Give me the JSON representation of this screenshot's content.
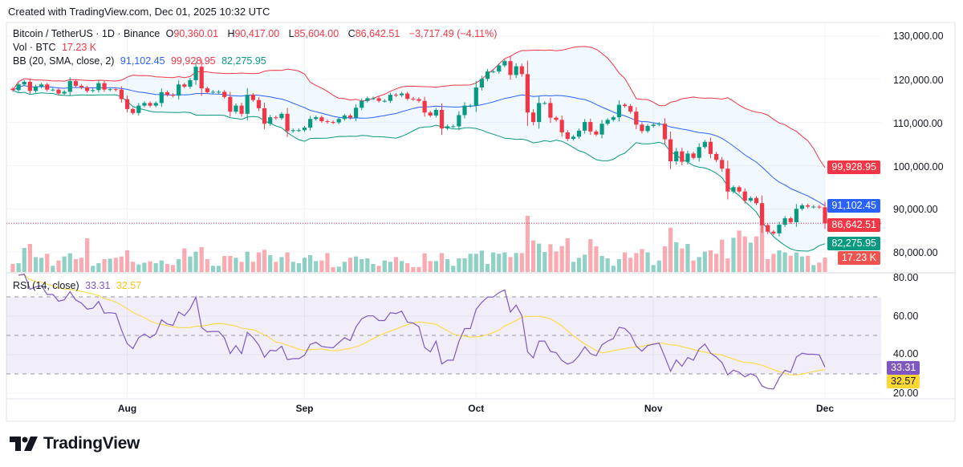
{
  "created": "Created with TradingView.com, Dec 01, 2025 10:32 UTC",
  "legend": {
    "symbol": "Bitcoin / TetherUS · 1D · Binance",
    "o_label": "O",
    "o": "90,360.01",
    "h_label": "H",
    "h": "90,417.00",
    "l_label": "L",
    "l": "85,604.00",
    "c_label": "C",
    "c": "86,642.51",
    "change": "−3,717.49 (−4.11%)",
    "vol_label": "Vol · BTC",
    "vol": "17.23 K",
    "bb_label": "BB (20, SMA, close, 2)",
    "bb_basis": "91,102.45",
    "bb_upper": "99,928.95",
    "bb_lower": "82,275.95",
    "rsi_label": "RSI (14, close)",
    "rsi": "33.31",
    "rsi_ma": "32.57"
  },
  "price_axis": [
    "130,000.00",
    "120,000.00",
    "110,000.00",
    "100,000.00",
    "90,000.00",
    "80,000.00"
  ],
  "rsi_axis": [
    "80.00",
    "60.00",
    "40.00",
    "20.00"
  ],
  "badges": {
    "bb_upper": "99,928.95",
    "bb_basis": "91,102.45",
    "last_price": "86,642.51",
    "bb_lower": "82,275.95",
    "volume": "17.23 K",
    "rsi": "33.31",
    "rsi_ma": "32.57"
  },
  "time_axis": [
    {
      "label": "Aug",
      "date": "Aug 1"
    },
    {
      "label": "Sep",
      "date": "Sep 1"
    },
    {
      "label": "Oct",
      "date": "Oct 1"
    },
    {
      "label": "Nov",
      "date": "Nov 1"
    },
    {
      "label": "Dec",
      "date": "Dec 1"
    }
  ],
  "logo": "TradingView",
  "colors": {
    "up": "#089981",
    "down": "#F23645",
    "bb_basis": "#2962FF",
    "bb_upper": "#F23645",
    "bb_lower": "#089981",
    "rsi": "#7E57C2",
    "rsi_ma": "#FDD835"
  },
  "chart_data": {
    "type": "candlestick",
    "symbol": "Bitcoin / TetherUS",
    "interval": "1D",
    "price_range": [
      78000,
      131000
    ],
    "rsi_range": [
      15,
      80
    ],
    "rsi_levels": [
      70,
      50,
      30
    ],
    "dates": [
      "Jul 12",
      "Jul 13",
      "Jul 14",
      "Jul 15",
      "Jul 16",
      "Jul 17",
      "Jul 18",
      "Jul 19",
      "Jul 20",
      "Jul 21",
      "Jul 22",
      "Jul 23",
      "Jul 24",
      "Jul 25",
      "Jul 26",
      "Jul 27",
      "Jul 28",
      "Jul 29",
      "Jul 30",
      "Jul 31",
      "Aug 1",
      "Aug 2",
      "Aug 3",
      "Aug 4",
      "Aug 5",
      "Aug 6",
      "Aug 7",
      "Aug 8",
      "Aug 9",
      "Aug 10",
      "Aug 11",
      "Aug 12",
      "Aug 13",
      "Aug 14",
      "Aug 15",
      "Aug 16",
      "Aug 17",
      "Aug 18",
      "Aug 19",
      "Aug 20",
      "Aug 21",
      "Aug 22",
      "Aug 23",
      "Aug 24",
      "Aug 25",
      "Aug 26",
      "Aug 27",
      "Aug 28",
      "Aug 29",
      "Aug 30",
      "Aug 31",
      "Sep 1",
      "Sep 2",
      "Sep 3",
      "Sep 4",
      "Sep 5",
      "Sep 6",
      "Sep 7",
      "Sep 8",
      "Sep 9",
      "Sep 10",
      "Sep 11",
      "Sep 12",
      "Sep 13",
      "Sep 14",
      "Sep 15",
      "Sep 16",
      "Sep 17",
      "Sep 18",
      "Sep 19",
      "Sep 20",
      "Sep 21",
      "Sep 22",
      "Sep 23",
      "Sep 24",
      "Sep 25",
      "Sep 26",
      "Sep 27",
      "Sep 28",
      "Sep 29",
      "Sep 30",
      "Oct 1",
      "Oct 2",
      "Oct 3",
      "Oct 4",
      "Oct 5",
      "Oct 6",
      "Oct 7",
      "Oct 8",
      "Oct 9",
      "Oct 10",
      "Oct 11",
      "Oct 12",
      "Oct 13",
      "Oct 14",
      "Oct 15",
      "Oct 16",
      "Oct 17",
      "Oct 18",
      "Oct 19",
      "Oct 20",
      "Oct 21",
      "Oct 22",
      "Oct 23",
      "Oct 24",
      "Oct 25",
      "Oct 26",
      "Oct 27",
      "Oct 28",
      "Oct 29",
      "Oct 30",
      "Oct 31",
      "Nov 1",
      "Nov 2",
      "Nov 3",
      "Nov 4",
      "Nov 5",
      "Nov 6",
      "Nov 7",
      "Nov 8",
      "Nov 9",
      "Nov 10",
      "Nov 11",
      "Nov 12",
      "Nov 13",
      "Nov 14",
      "Nov 15",
      "Nov 16",
      "Nov 17",
      "Nov 18",
      "Nov 19",
      "Nov 20",
      "Nov 21",
      "Nov 22",
      "Nov 23",
      "Nov 24",
      "Nov 25",
      "Nov 26",
      "Nov 27",
      "Nov 28",
      "Nov 29",
      "Nov 30",
      "Dec 1"
    ],
    "close": [
      117500,
      118800,
      119400,
      117300,
      118300,
      118800,
      117600,
      117600,
      116700,
      117100,
      119600,
      118500,
      118100,
      117300,
      117500,
      119100,
      117600,
      117700,
      117600,
      115400,
      113100,
      112200,
      113900,
      114500,
      113900,
      114500,
      117000,
      116400,
      116200,
      118800,
      118300,
      119800,
      122900,
      117900,
      117000,
      117100,
      117100,
      115900,
      112500,
      113900,
      112000,
      116400,
      115200,
      113300,
      109700,
      111200,
      111000,
      112000,
      108000,
      108200,
      108200,
      108800,
      110800,
      111200,
      110300,
      110100,
      110000,
      110800,
      111600,
      111100,
      113400,
      115000,
      115600,
      115600,
      115000,
      115000,
      116400,
      116300,
      116700,
      115500,
      115400,
      115000,
      112300,
      111600,
      112900,
      108600,
      109100,
      109100,
      111700,
      113900,
      113900,
      118100,
      120100,
      121800,
      121800,
      123200,
      124200,
      121000,
      123000,
      121200,
      112300,
      110100,
      114500,
      114500,
      111100,
      110600,
      107700,
      106200,
      106700,
      108100,
      110100,
      107900,
      107200,
      109700,
      110600,
      111200,
      114100,
      113800,
      112500,
      109500,
      108000,
      109200,
      109500,
      109700,
      106100,
      101000,
      103300,
      100900,
      102800,
      101800,
      104300,
      105500,
      102700,
      101300,
      99300,
      94000,
      95000,
      94000,
      91900,
      92500,
      91300,
      86200,
      84700,
      84300,
      86300,
      87800,
      86900,
      90000,
      90800,
      90500,
      90500,
      90360,
      86642.51
    ],
    "volume_k": [
      9.6,
      10.6,
      28.8,
      33.6,
      17.9,
      17,
      21.8,
      7.4,
      13.8,
      18.6,
      22.4,
      15.4,
      17,
      40.3,
      7.4,
      10.6,
      15.4,
      16,
      17,
      18.6,
      25.9,
      12.2,
      9,
      11.2,
      12.8,
      10.6,
      13.8,
      9.6,
      8.3,
      15.4,
      28.2,
      18.6,
      24.3,
      29.8,
      15.4,
      7.4,
      7.4,
      19.2,
      19.2,
      17,
      12.2,
      24.3,
      12.2,
      23.4,
      26.6,
      20.2,
      12.2,
      17.9,
      23.4,
      12.2,
      10.6,
      17,
      20.2,
      13.1,
      13.8,
      22.7,
      5.8,
      6.4,
      12.2,
      17,
      18.6,
      15.4,
      16.3,
      9.6,
      7.4,
      13.8,
      12.2,
      17.9,
      13.1,
      10.6,
      5.8,
      5.8,
      22.4,
      13.1,
      13.1,
      22.7,
      15.4,
      7.4,
      16.3,
      16.3,
      21.8,
      21.8,
      25.6,
      9.6,
      23.4,
      21.8,
      23.4,
      17.9,
      22.7,
      22.7,
      67.2,
      37.8,
      34,
      24,
      33.3,
      24.6,
      31,
      40.3,
      12.2,
      17,
      20.8,
      39.4,
      30.7,
      19.2,
      16.3,
      7.4,
      15.4,
      23.4,
      17,
      22.7,
      27.5,
      23.4,
      8.3,
      13.8,
      30.7,
      53.1,
      35.5,
      28.2,
      33.6,
      13.8,
      17.9,
      24.3,
      25.9,
      21.8,
      38.7,
      16.3,
      41,
      49.6,
      42.6,
      35.2,
      42.6,
      75.2,
      15.4,
      21.8,
      25.9,
      23.4,
      19.5,
      23.4,
      18.6,
      19.5,
      8.3,
      11.2,
      17.23
    ],
    "indicators": [
      "BB (20, SMA, close, 2)",
      "RSI (14, close)"
    ]
  }
}
